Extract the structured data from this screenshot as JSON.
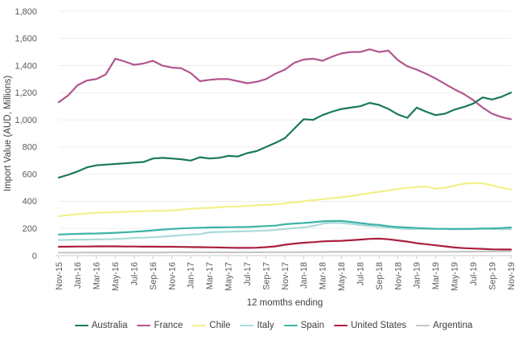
{
  "chart_data": {
    "type": "line",
    "title": "",
    "ylabel": "Import Value (AUD, Millions)",
    "xlabel": "12 momths ending",
    "ylim": [
      0,
      1800
    ],
    "y_tick_step": 200,
    "y_ticks": [
      "0",
      "200",
      "400",
      "600",
      "800",
      "1,000",
      "1,200",
      "1,400",
      "1,600",
      "1,800"
    ],
    "grid": "horizontal",
    "legend_position": "bottom",
    "x_tick_every": 2,
    "x": [
      "Nov-15",
      "Dec-15",
      "Jan-16",
      "Feb-16",
      "Mar-16",
      "Apr-16",
      "May-16",
      "Jun-16",
      "Jul-16",
      "Aug-16",
      "Sep-16",
      "Oct-16",
      "Nov-16",
      "Dec-16",
      "Jan-17",
      "Feb-17",
      "Mar-17",
      "Apr-17",
      "May-17",
      "Jun-17",
      "Jul-17",
      "Aug-17",
      "Sep-17",
      "Oct-17",
      "Nov-17",
      "Dec-17",
      "Jan-18",
      "Feb-18",
      "Mar-18",
      "Apr-18",
      "May-18",
      "Jun-18",
      "Jul-18",
      "Aug-18",
      "Sep-18",
      "Oct-18",
      "Nov-18",
      "Dec-18",
      "Jan-19",
      "Feb-19",
      "Mar-19",
      "Apr-19",
      "May-19",
      "Jun-19",
      "Jul-19",
      "Aug-19",
      "Sep-19",
      "Oct-19",
      "Nov-19"
    ],
    "series": [
      {
        "name": "Australia",
        "color": "#1a7a52",
        "values": [
          575,
          595,
          620,
          650,
          665,
          670,
          675,
          680,
          685,
          690,
          715,
          720,
          715,
          710,
          700,
          725,
          715,
          720,
          735,
          730,
          755,
          770,
          800,
          830,
          865,
          935,
          1005,
          1000,
          1035,
          1060,
          1080,
          1090,
          1100,
          1125,
          1110,
          1080,
          1040,
          1015,
          1090,
          1060,
          1035,
          1045,
          1075,
          1095,
          1120,
          1165,
          1150,
          1170,
          1200
        ]
      },
      {
        "name": "France",
        "color": "#b2568e",
        "values": [
          1130,
          1180,
          1255,
          1290,
          1300,
          1335,
          1450,
          1430,
          1405,
          1415,
          1435,
          1400,
          1385,
          1380,
          1345,
          1285,
          1295,
          1300,
          1300,
          1285,
          1270,
          1280,
          1300,
          1340,
          1370,
          1420,
          1445,
          1450,
          1435,
          1465,
          1490,
          1500,
          1500,
          1520,
          1500,
          1510,
          1440,
          1395,
          1370,
          1340,
          1305,
          1265,
          1225,
          1190,
          1145,
          1090,
          1045,
          1020,
          1005
        ]
      },
      {
        "name": "Chile",
        "color": "#f2f08a",
        "values": [
          290,
          298,
          305,
          310,
          315,
          318,
          320,
          322,
          325,
          328,
          330,
          330,
          332,
          338,
          345,
          348,
          352,
          356,
          360,
          362,
          366,
          370,
          373,
          378,
          385,
          392,
          400,
          408,
          415,
          422,
          430,
          438,
          450,
          460,
          470,
          480,
          490,
          500,
          505,
          510,
          492,
          500,
          515,
          530,
          535,
          532,
          518,
          500,
          487
        ]
      },
      {
        "name": "Italy",
        "color": "#abdada",
        "values": [
          115,
          116,
          118,
          118,
          119,
          120,
          122,
          125,
          130,
          132,
          135,
          140,
          145,
          150,
          155,
          158,
          172,
          174,
          176,
          178,
          180,
          182,
          185,
          188,
          196,
          202,
          208,
          218,
          235,
          242,
          240,
          233,
          225,
          218,
          212,
          207,
          200,
          196,
          197,
          198,
          197,
          196,
          195,
          195,
          196,
          197,
          196,
          195,
          195
        ]
      },
      {
        "name": "Spain",
        "color": "#3eb3a8",
        "values": [
          155,
          158,
          160,
          162,
          163,
          165,
          168,
          172,
          176,
          180,
          186,
          192,
          196,
          200,
          203,
          205,
          207,
          208,
          209,
          210,
          211,
          214,
          218,
          221,
          231,
          236,
          240,
          246,
          252,
          255,
          255,
          248,
          240,
          231,
          226,
          216,
          210,
          207,
          203,
          200,
          198,
          197,
          196,
          197,
          198,
          200,
          201,
          203,
          207
        ]
      },
      {
        "name": "United States",
        "color": "#aa1f3f",
        "values": [
          65,
          66,
          67,
          67,
          68,
          68,
          68,
          67,
          67,
          66,
          66,
          65,
          65,
          64,
          63,
          62,
          61,
          60,
          58,
          57,
          57,
          58,
          62,
          68,
          80,
          88,
          95,
          99,
          105,
          107,
          109,
          113,
          118,
          123,
          125,
          120,
          112,
          103,
          91,
          84,
          76,
          68,
          60,
          55,
          52,
          50,
          46,
          45,
          45
        ]
      },
      {
        "name": "Argentina",
        "color": "#c6c6c6",
        "values": [
          22,
          22,
          22,
          23,
          23,
          23,
          23,
          23,
          23,
          23,
          23,
          23,
          24,
          24,
          24,
          24,
          24,
          24,
          24,
          24,
          24,
          24,
          25,
          25,
          25,
          25,
          26,
          26,
          26,
          27,
          27,
          27,
          27,
          27,
          27,
          27,
          27,
          27,
          27,
          28,
          28,
          28,
          28,
          29,
          29,
          30,
          30,
          31,
          32
        ]
      }
    ]
  }
}
